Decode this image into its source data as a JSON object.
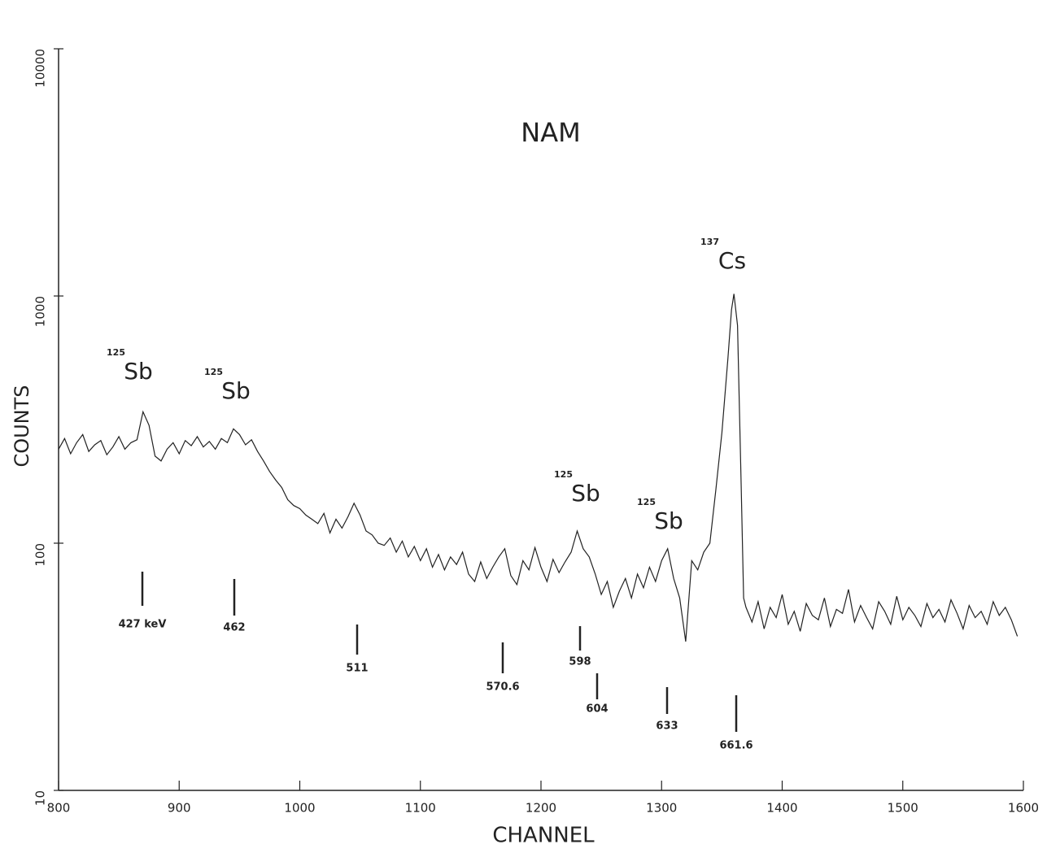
{
  "chart_data": {
    "type": "line",
    "title": "NAM",
    "x_label": "CHANNEL",
    "y_label": "COUNTS",
    "log_y": true,
    "color": "#222222",
    "xlim": [
      800,
      1600
    ],
    "ylim": [
      10,
      10000
    ],
    "xticks": [
      800,
      900,
      1000,
      1100,
      1200,
      1300,
      1400,
      1500,
      1600
    ],
    "yticks": [
      10,
      100,
      1000,
      10000
    ],
    "x": [
      800,
      805,
      810,
      815,
      820,
      825,
      830,
      835,
      840,
      845,
      850,
      855,
      860,
      865,
      870,
      875,
      880,
      885,
      890,
      895,
      900,
      905,
      910,
      915,
      920,
      925,
      930,
      935,
      940,
      945,
      950,
      955,
      960,
      965,
      970,
      975,
      980,
      985,
      990,
      995,
      1000,
      1005,
      1010,
      1015,
      1020,
      1025,
      1030,
      1035,
      1040,
      1045,
      1050,
      1055,
      1060,
      1065,
      1070,
      1075,
      1080,
      1085,
      1090,
      1095,
      1100,
      1105,
      1110,
      1115,
      1120,
      1125,
      1130,
      1135,
      1140,
      1145,
      1150,
      1155,
      1160,
      1165,
      1170,
      1175,
      1180,
      1185,
      1190,
      1195,
      1200,
      1205,
      1210,
      1215,
      1220,
      1225,
      1230,
      1235,
      1240,
      1245,
      1250,
      1255,
      1260,
      1265,
      1270,
      1275,
      1280,
      1285,
      1290,
      1295,
      1300,
      1305,
      1310,
      1315,
      1320,
      1325,
      1330,
      1335,
      1340,
      1345,
      1350,
      1355,
      1358,
      1360,
      1363,
      1366,
      1368,
      1370,
      1375,
      1380,
      1385,
      1390,
      1395,
      1400,
      1405,
      1410,
      1415,
      1420,
      1425,
      1430,
      1435,
      1440,
      1445,
      1450,
      1455,
      1460,
      1465,
      1470,
      1475,
      1480,
      1485,
      1490,
      1495,
      1500,
      1505,
      1510,
      1515,
      1520,
      1525,
      1530,
      1535,
      1540,
      1545,
      1550,
      1555,
      1560,
      1565,
      1570,
      1575,
      1580,
      1585,
      1590,
      1595
    ],
    "values": [
      240,
      265,
      230,
      255,
      275,
      235,
      250,
      260,
      228,
      245,
      270,
      240,
      255,
      262,
      340,
      300,
      225,
      215,
      240,
      255,
      230,
      260,
      248,
      270,
      245,
      258,
      240,
      265,
      255,
      290,
      275,
      250,
      262,
      235,
      215,
      195,
      180,
      168,
      150,
      142,
      138,
      130,
      125,
      120,
      132,
      110,
      125,
      115,
      128,
      145,
      130,
      112,
      108,
      100,
      98,
      105,
      92,
      102,
      88,
      97,
      85,
      95,
      80,
      90,
      78,
      88,
      82,
      92,
      75,
      70,
      84,
      72,
      80,
      88,
      95,
      74,
      68,
      85,
      78,
      96,
      80,
      70,
      86,
      76,
      84,
      92,
      112,
      95,
      88,
      75,
      62,
      70,
      55,
      64,
      72,
      60,
      75,
      66,
      80,
      70,
      85,
      95,
      72,
      60,
      40,
      85,
      78,
      92,
      100,
      165,
      280,
      560,
      880,
      1020,
      760,
      170,
      60,
      55,
      48,
      58,
      45,
      55,
      50,
      62,
      47,
      53,
      44,
      57,
      51,
      49,
      60,
      46,
      54,
      52,
      65,
      48,
      56,
      50,
      45,
      58,
      53,
      47,
      61,
      49,
      55,
      51,
      46,
      57,
      50,
      54,
      48,
      59,
      52,
      45,
      56,
      50,
      53,
      47,
      58,
      51,
      55,
      49,
      42
    ],
    "peak_labels": [
      {
        "mass": "125",
        "element": "Sb"
      },
      {
        "mass": "125",
        "element": "Sb"
      },
      {
        "mass": "125",
        "element": "Sb"
      },
      {
        "mass": "125",
        "element": "Sb"
      },
      {
        "mass": "137",
        "element": "Cs"
      }
    ],
    "energy_markers": [
      "427 keV",
      "462",
      "511",
      "570.6",
      "598",
      "604",
      "633",
      "661.6"
    ]
  }
}
